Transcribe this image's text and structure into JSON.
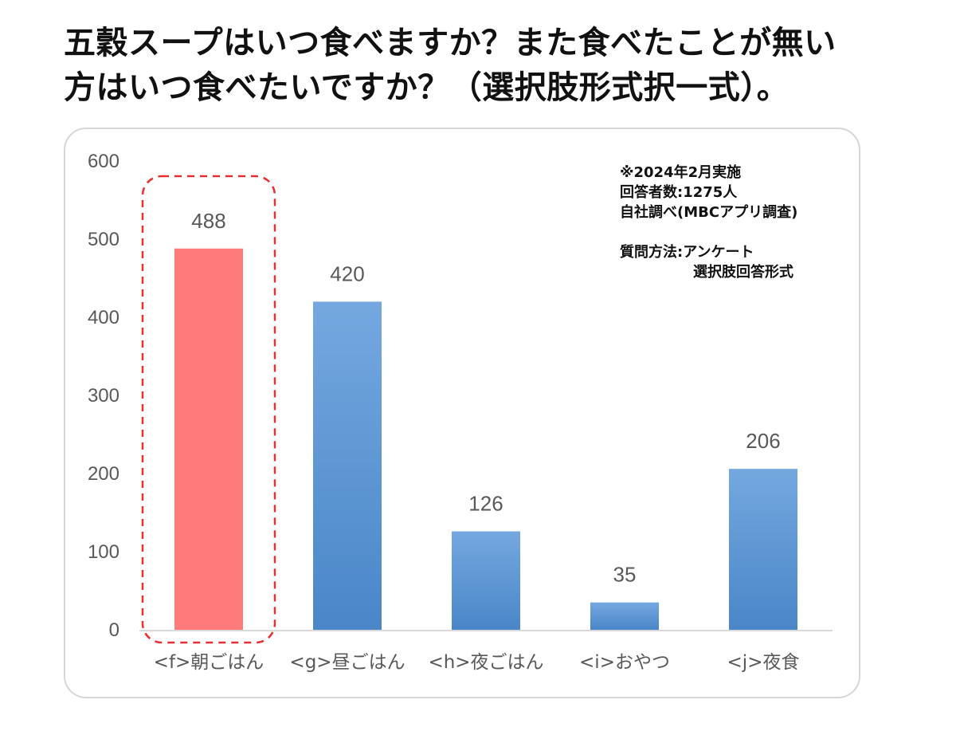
{
  "title": {
    "line1": "五穀スープはいつ食べますか？また食べたことが無い",
    "line2": "方はいつ食べたいですか？（選択肢形式択一式）。"
  },
  "note": {
    "line1": "※2024年2月実施",
    "line2": "回答者数:1275人",
    "line3": "自社調べ(MBCアプリ調査)",
    "line4": "質問方法:アンケート",
    "line5": "選択肢回答形式"
  },
  "colors": {
    "highlight": "#ff7b7b",
    "bar_top": "#74a8df",
    "bar_bottom": "#4a86c8",
    "dashed_box": "#e83030",
    "axis": "#d9d9d9"
  },
  "chart_data": {
    "type": "bar",
    "categories": [
      "<f>朝ごはん",
      "<g>昼ごはん",
      "<h>夜ごはん",
      "<i>おやつ",
      "<j>夜食"
    ],
    "values": [
      488,
      420,
      126,
      35,
      206
    ],
    "ylim": [
      0,
      600
    ],
    "yticks": [
      "0",
      "100",
      "200",
      "300",
      "400",
      "500",
      "600"
    ],
    "data_labels": [
      "488",
      "420",
      "126",
      "35",
      "206"
    ],
    "highlighted_category": "<f>朝ごはん",
    "grid": false,
    "legend": "none"
  }
}
